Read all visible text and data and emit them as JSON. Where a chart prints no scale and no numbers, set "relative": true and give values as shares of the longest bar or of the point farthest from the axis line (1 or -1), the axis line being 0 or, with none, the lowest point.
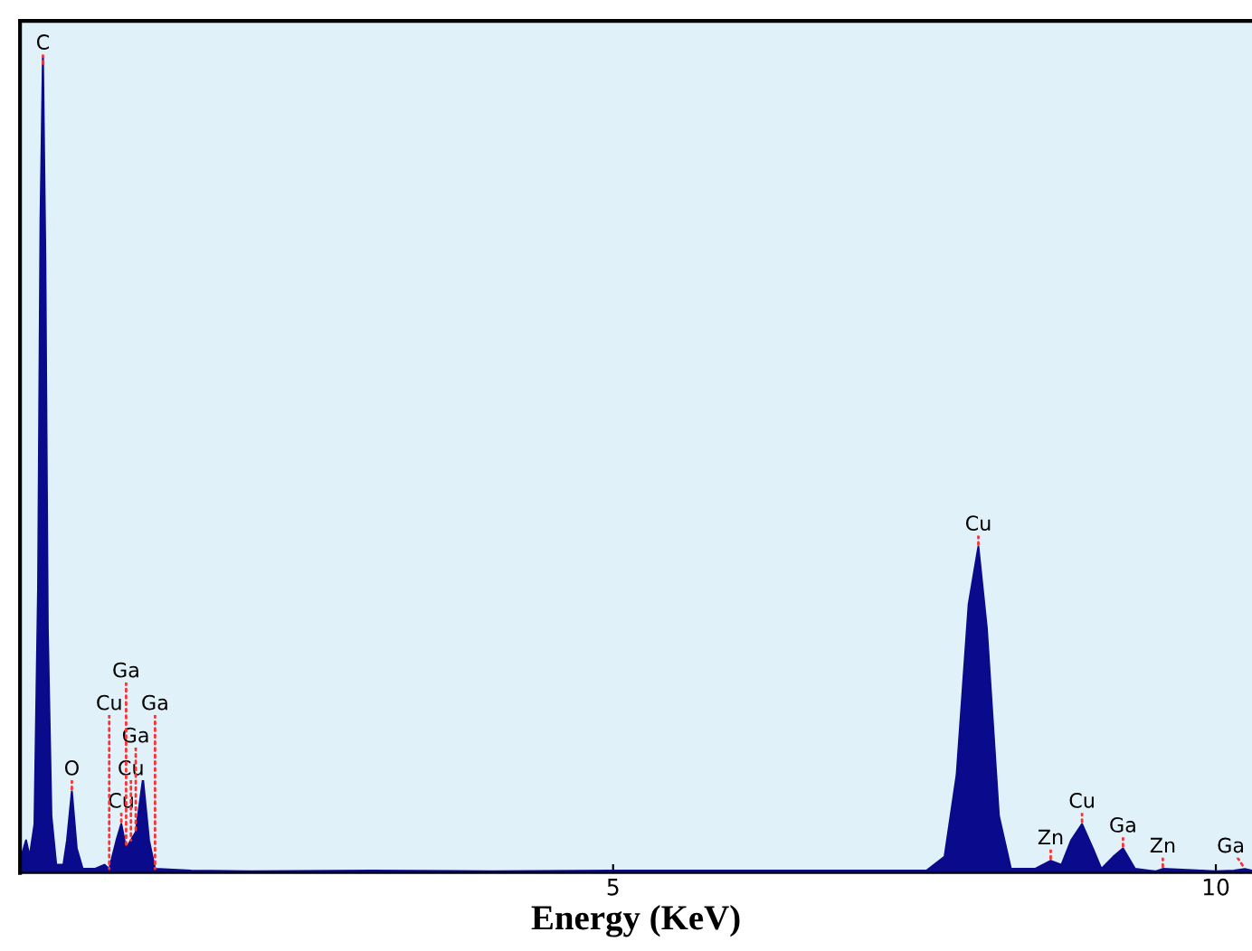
{
  "chart_data": {
    "type": "area",
    "relative": true,
    "xlabel": "Energy (KeV)",
    "xlim": [
      0.08,
      10.3
    ],
    "xticks": [
      5,
      10
    ],
    "grid": false,
    "legend": false,
    "x": [
      0.09,
      0.13,
      0.16,
      0.2,
      0.23,
      0.25,
      0.27,
      0.29,
      0.31,
      0.34,
      0.38,
      0.44,
      0.47,
      0.51,
      0.55,
      0.6,
      0.7,
      0.78,
      0.82,
      0.88,
      0.92,
      0.96,
      1.0,
      1.04,
      1.1,
      1.15,
      1.2,
      1.5,
      2.0,
      3.0,
      4.0,
      5.0,
      6.0,
      7.0,
      7.6,
      7.75,
      7.85,
      7.95,
      8.03,
      8.1,
      8.2,
      8.3,
      8.5,
      8.63,
      8.72,
      8.8,
      8.89,
      8.98,
      9.05,
      9.15,
      9.23,
      9.33,
      9.5,
      9.56,
      10.0,
      10.15,
      10.24,
      10.3
    ],
    "series": [
      {
        "color": "#0a0a8c",
        "values": [
          0.02,
          0.04,
          0.02,
          0.06,
          0.35,
          0.8,
          1.0,
          0.75,
          0.3,
          0.07,
          0.01,
          0.01,
          0.04,
          0.1,
          0.03,
          0.005,
          0.005,
          0.01,
          0.005,
          0.04,
          0.06,
          0.03,
          0.04,
          0.05,
          0.115,
          0.04,
          0.005,
          0.003,
          0.002,
          0.003,
          0.002,
          0.003,
          0.003,
          0.003,
          0.003,
          0.02,
          0.12,
          0.33,
          0.4,
          0.3,
          0.07,
          0.005,
          0.005,
          0.015,
          0.01,
          0.04,
          0.06,
          0.03,
          0.005,
          0.02,
          0.03,
          0.005,
          0.002,
          0.005,
          0.002,
          0.003,
          0.005,
          0.003
        ]
      }
    ],
    "annotations": [
      {
        "text": "C",
        "x": 0.27,
        "y": 0.99
      },
      {
        "text": "O",
        "x": 0.51,
        "y": 0.1
      },
      {
        "text": "Cu",
        "x": 0.92,
        "y": 0.06
      },
      {
        "text": "Cu",
        "x": 1.0,
        "y": 0.04
      },
      {
        "text": "Ga",
        "x": 1.04,
        "y": 0.05
      },
      {
        "text": "Cu",
        "x": 0.82,
        "y": 0.005
      },
      {
        "text": "Ga",
        "x": 1.2,
        "y": 0.005
      },
      {
        "text": "Ga",
        "x": 0.96,
        "y": 0.03
      },
      {
        "text": "Cu",
        "x": 8.03,
        "y": 0.4
      },
      {
        "text": "Zn",
        "x": 8.63,
        "y": 0.015
      },
      {
        "text": "Cu",
        "x": 8.89,
        "y": 0.06
      },
      {
        "text": "Ga",
        "x": 9.23,
        "y": 0.03
      },
      {
        "text": "Zn",
        "x": 9.56,
        "y": 0.005
      },
      {
        "text": "Ga",
        "x": 10.24,
        "y": 0.005
      }
    ]
  }
}
